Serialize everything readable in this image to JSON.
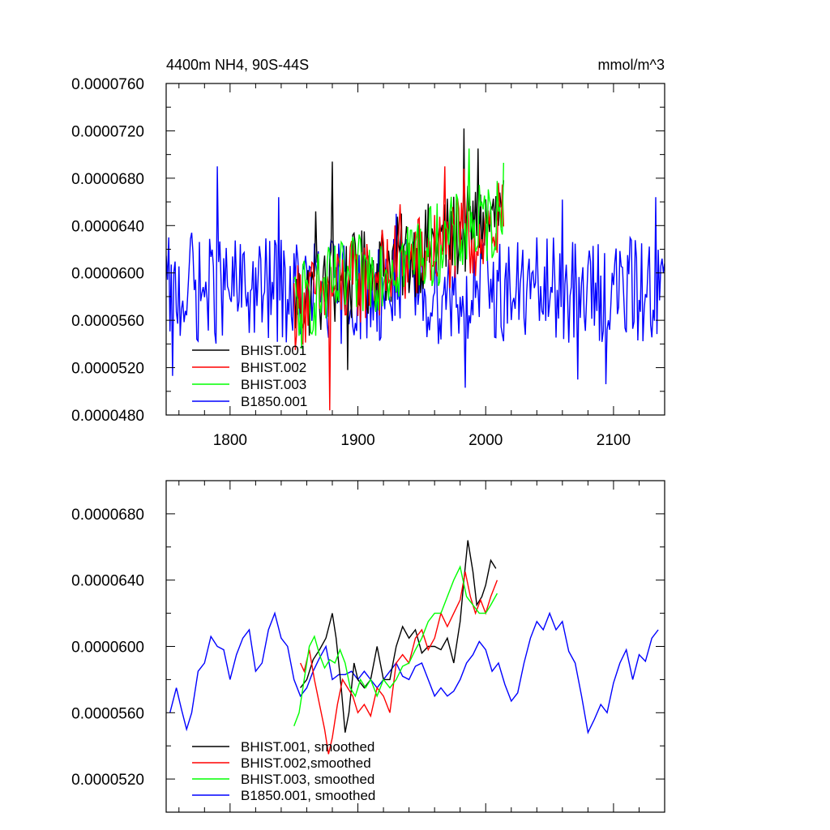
{
  "chart_data": [
    {
      "type": "line",
      "title": "4400m NH4, 90S-44S",
      "units": "mmol/m^3",
      "xlim": [
        1750,
        2140
      ],
      "ylim": [
        4.8e-05,
        7.6e-05
      ],
      "xticks": [
        1800,
        1900,
        2000,
        2100
      ],
      "xtick_labels": [
        "1800",
        "1900",
        "2000",
        "2100"
      ],
      "yticks": [
        4.8e-05,
        5.2e-05,
        5.6e-05,
        6e-05,
        6.4e-05,
        6.8e-05,
        7.2e-05,
        7.6e-05
      ],
      "ytick_labels": [
        "0.0000480",
        "0.0000520",
        "0.0000560",
        "0.0000600",
        "0.0000640",
        "0.0000680",
        "0.0000720",
        "0.0000760"
      ],
      "legend_position": "bottom-left",
      "series": [
        {
          "name": "BHIST.001",
          "color": "#000000",
          "x_start": 1850,
          "x_end": 2014,
          "base": 5.75e-05,
          "trend_end": 6.48e-05,
          "amp": 3.8e-06,
          "peaks": [
            [
              1867,
              6.52e-05
            ],
            [
              1880,
              6.94e-05
            ],
            [
              1983,
              7.22e-05
            ],
            [
              1994,
              7.05e-05
            ]
          ],
          "troughs": [
            [
              1892,
              5.18e-05
            ]
          ]
        },
        {
          "name": "BHIST.002",
          "color": "#ff0000",
          "x_start": 1850,
          "x_end": 2014,
          "base": 5.72e-05,
          "trend_end": 6.4e-05,
          "amp": 3.8e-06,
          "peaks": [
            [
              1933,
              6.58e-05
            ],
            [
              1968,
              6.9e-05
            ],
            [
              1983,
              6.88e-05
            ]
          ],
          "troughs": [
            [
              1878,
              4.84e-05
            ]
          ]
        },
        {
          "name": "BHIST.003",
          "color": "#00ff00",
          "x_start": 1850,
          "x_end": 2014,
          "base": 5.74e-05,
          "trend_end": 6.48e-05,
          "amp": 3.6e-06,
          "peaks": [
            [
              1987,
              7.05e-05
            ],
            [
              2014,
              6.93e-05
            ]
          ],
          "troughs": [
            [
              1856,
              5.36e-05
            ]
          ]
        },
        {
          "name": "B1850.001",
          "color": "#0000ff",
          "x_start": 1750,
          "x_end": 2140,
          "base": 5.85e-05,
          "trend_end": 5.85e-05,
          "amp": 4.5e-06,
          "peaks": [
            [
              1790,
              6.9e-05
            ],
            [
              1770,
              6.34e-05
            ],
            [
              1838,
              6.64e-05
            ],
            [
              1930,
              6.5e-05
            ],
            [
              2000,
              6.62e-05
            ],
            [
              2060,
              6.62e-05
            ],
            [
              2133,
              6.64e-05
            ]
          ],
          "troughs": [
            [
              1755,
              5.13e-05
            ],
            [
              1984,
              5.03e-05
            ],
            [
              2094,
              5.06e-05
            ],
            [
              2072,
              5.1e-05
            ]
          ]
        }
      ],
      "legend_labels": [
        "BHIST.001",
        "BHIST.002",
        "BHIST.003",
        "B1850.001"
      ]
    },
    {
      "type": "line",
      "title": "",
      "xlim": [
        1750,
        2140
      ],
      "ylim": [
        5e-05,
        7e-05
      ],
      "xticks": [
        1800,
        1900,
        2000,
        2100
      ],
      "yticks": [
        5.2e-05,
        5.6e-05,
        6e-05,
        6.4e-05,
        6.8e-05
      ],
      "ytick_labels": [
        "0.0000520",
        "0.0000560",
        "0.0000600",
        "0.0000640",
        "0.0000680"
      ],
      "legend_position": "bottom-left",
      "series": [
        {
          "name": "BHIST.001, smoothed",
          "color": "#000000",
          "points": [
            [
              1855,
              5.75e-05
            ],
            [
              1860,
              5.8e-05
            ],
            [
              1865,
              5.92e-05
            ],
            [
              1870,
              5.98e-05
            ],
            [
              1875,
              6.05e-05
            ],
            [
              1880,
              6.2e-05
            ],
            [
              1883,
              6.05e-05
            ],
            [
              1887,
              5.75e-05
            ],
            [
              1890,
              5.48e-05
            ],
            [
              1893,
              5.6e-05
            ],
            [
              1897,
              5.9e-05
            ],
            [
              1900,
              5.8e-05
            ],
            [
              1905,
              5.75e-05
            ],
            [
              1910,
              5.8e-05
            ],
            [
              1915,
              6e-05
            ],
            [
              1920,
              5.8e-05
            ],
            [
              1925,
              5.8e-05
            ],
            [
              1930,
              6e-05
            ],
            [
              1935,
              6.12e-05
            ],
            [
              1940,
              6.05e-05
            ],
            [
              1945,
              6.1e-05
            ],
            [
              1950,
              5.96e-05
            ],
            [
              1955,
              6e-05
            ],
            [
              1960,
              6e-05
            ],
            [
              1965,
              5.98e-05
            ],
            [
              1970,
              6.05e-05
            ],
            [
              1975,
              5.9e-05
            ],
            [
              1980,
              6.15e-05
            ],
            [
              1983,
              6.4e-05
            ],
            [
              1986,
              6.64e-05
            ],
            [
              1990,
              6.45e-05
            ],
            [
              1993,
              6.25e-05
            ],
            [
              1997,
              6.3e-05
            ],
            [
              2000,
              6.37e-05
            ],
            [
              2004,
              6.52e-05
            ],
            [
              2008,
              6.47e-05
            ]
          ]
        },
        {
          "name": "BHIST.002,smoothed",
          "color": "#ff0000",
          "points": [
            [
              1855,
              5.9e-05
            ],
            [
              1858,
              5.85e-05
            ],
            [
              1862,
              5.98e-05
            ],
            [
              1866,
              5.8e-05
            ],
            [
              1870,
              5.65e-05
            ],
            [
              1874,
              5.5e-05
            ],
            [
              1877,
              5.35e-05
            ],
            [
              1880,
              5.45e-05
            ],
            [
              1884,
              5.65e-05
            ],
            [
              1888,
              5.8e-05
            ],
            [
              1892,
              5.75e-05
            ],
            [
              1896,
              5.7e-05
            ],
            [
              1900,
              5.6e-05
            ],
            [
              1905,
              5.65e-05
            ],
            [
              1910,
              5.58e-05
            ],
            [
              1915,
              5.75e-05
            ],
            [
              1920,
              5.7e-05
            ],
            [
              1925,
              5.6e-05
            ],
            [
              1930,
              5.9e-05
            ],
            [
              1935,
              5.95e-05
            ],
            [
              1940,
              5.9e-05
            ],
            [
              1945,
              6.05e-05
            ],
            [
              1950,
              6.1e-05
            ],
            [
              1955,
              5.98e-05
            ],
            [
              1960,
              6.05e-05
            ],
            [
              1965,
              6.2e-05
            ],
            [
              1970,
              6.12e-05
            ],
            [
              1975,
              6.2e-05
            ],
            [
              1980,
              6.28e-05
            ],
            [
              1984,
              6.45e-05
            ],
            [
              1988,
              6.3e-05
            ],
            [
              1992,
              6.2e-05
            ],
            [
              1996,
              6.28e-05
            ],
            [
              2000,
              6.2e-05
            ],
            [
              2004,
              6.3e-05
            ],
            [
              2009,
              6.4e-05
            ]
          ]
        },
        {
          "name": "BHIST.003, smoothed",
          "color": "#00ff00",
          "points": [
            [
              1850,
              5.52e-05
            ],
            [
              1854,
              5.6e-05
            ],
            [
              1858,
              5.8e-05
            ],
            [
              1862,
              6e-05
            ],
            [
              1866,
              6.06e-05
            ],
            [
              1870,
              5.95e-05
            ],
            [
              1874,
              5.87e-05
            ],
            [
              1878,
              5.92e-05
            ],
            [
              1882,
              5.9e-05
            ],
            [
              1886,
              5.98e-05
            ],
            [
              1890,
              5.9e-05
            ],
            [
              1894,
              5.75e-05
            ],
            [
              1898,
              5.7e-05
            ],
            [
              1902,
              5.8e-05
            ],
            [
              1906,
              5.75e-05
            ],
            [
              1910,
              5.8e-05
            ],
            [
              1915,
              5.7e-05
            ],
            [
              1920,
              5.8e-05
            ],
            [
              1925,
              5.75e-05
            ],
            [
              1930,
              5.8e-05
            ],
            [
              1935,
              5.88e-05
            ],
            [
              1940,
              5.9e-05
            ],
            [
              1945,
              5.98e-05
            ],
            [
              1950,
              6.05e-05
            ],
            [
              1955,
              6.15e-05
            ],
            [
              1960,
              6.2e-05
            ],
            [
              1965,
              6.2e-05
            ],
            [
              1970,
              6.3e-05
            ],
            [
              1975,
              6.4e-05
            ],
            [
              1980,
              6.48e-05
            ],
            [
              1985,
              6.3e-05
            ],
            [
              1990,
              6.25e-05
            ],
            [
              1995,
              6.2e-05
            ],
            [
              2000,
              6.2e-05
            ],
            [
              2004,
              6.25e-05
            ],
            [
              2009,
              6.32e-05
            ]
          ]
        },
        {
          "name": "B1850.001, smoothed",
          "color": "#0000ff",
          "points": [
            [
              1753,
              5.6e-05
            ],
            [
              1758,
              5.75e-05
            ],
            [
              1762,
              5.62e-05
            ],
            [
              1766,
              5.5e-05
            ],
            [
              1770,
              5.6e-05
            ],
            [
              1775,
              5.85e-05
            ],
            [
              1780,
              5.9e-05
            ],
            [
              1785,
              6.06e-05
            ],
            [
              1790,
              6e-05
            ],
            [
              1795,
              5.98e-05
            ],
            [
              1800,
              5.8e-05
            ],
            [
              1805,
              5.95e-05
            ],
            [
              1810,
              6.05e-05
            ],
            [
              1815,
              6.1e-05
            ],
            [
              1820,
              5.85e-05
            ],
            [
              1825,
              5.9e-05
            ],
            [
              1830,
              6.1e-05
            ],
            [
              1835,
              6.2e-05
            ],
            [
              1840,
              6.05e-05
            ],
            [
              1845,
              6e-05
            ],
            [
              1850,
              5.8e-05
            ],
            [
              1855,
              5.7e-05
            ],
            [
              1860,
              5.75e-05
            ],
            [
              1865,
              5.85e-05
            ],
            [
              1870,
              5.93e-05
            ],
            [
              1875,
              6e-05
            ],
            [
              1880,
              5.8e-05
            ],
            [
              1885,
              5.83e-05
            ],
            [
              1890,
              5.83e-05
            ],
            [
              1895,
              5.85e-05
            ],
            [
              1900,
              5.8e-05
            ],
            [
              1905,
              5.85e-05
            ],
            [
              1910,
              5.8e-05
            ],
            [
              1915,
              5.75e-05
            ],
            [
              1920,
              5.8e-05
            ],
            [
              1925,
              5.85e-05
            ],
            [
              1930,
              5.9e-05
            ],
            [
              1935,
              5.82e-05
            ],
            [
              1940,
              5.8e-05
            ],
            [
              1945,
              5.88e-05
            ],
            [
              1950,
              5.9e-05
            ],
            [
              1955,
              5.8e-05
            ],
            [
              1960,
              5.7e-05
            ],
            [
              1965,
              5.75e-05
            ],
            [
              1970,
              5.7e-05
            ],
            [
              1975,
              5.73e-05
            ],
            [
              1980,
              5.8e-05
            ],
            [
              1985,
              5.9e-05
            ],
            [
              1990,
              5.95e-05
            ],
            [
              1995,
              6.03e-05
            ],
            [
              2000,
              5.98e-05
            ],
            [
              2005,
              5.85e-05
            ],
            [
              2010,
              5.9e-05
            ],
            [
              2015,
              5.77e-05
            ],
            [
              2020,
              5.67e-05
            ],
            [
              2025,
              5.72e-05
            ],
            [
              2030,
              5.9e-05
            ],
            [
              2035,
              6.05e-05
            ],
            [
              2040,
              6.15e-05
            ],
            [
              2045,
              6.1e-05
            ],
            [
              2050,
              6.2e-05
            ],
            [
              2055,
              6.1e-05
            ],
            [
              2060,
              6.15e-05
            ],
            [
              2065,
              5.97e-05
            ],
            [
              2070,
              5.9e-05
            ],
            [
              2075,
              5.7e-05
            ],
            [
              2080,
              5.48e-05
            ],
            [
              2085,
              5.56e-05
            ],
            [
              2090,
              5.65e-05
            ],
            [
              2095,
              5.6e-05
            ],
            [
              2100,
              5.78e-05
            ],
            [
              2105,
              5.9e-05
            ],
            [
              2110,
              5.98e-05
            ],
            [
              2115,
              5.8e-05
            ],
            [
              2120,
              5.95e-05
            ],
            [
              2125,
              5.91e-05
            ],
            [
              2130,
              6.05e-05
            ],
            [
              2135,
              6.1e-05
            ]
          ]
        }
      ],
      "legend_labels": [
        "BHIST.001, smoothed",
        "BHIST.002,smoothed",
        "BHIST.003, smoothed",
        "B1850.001, smoothed"
      ]
    }
  ]
}
